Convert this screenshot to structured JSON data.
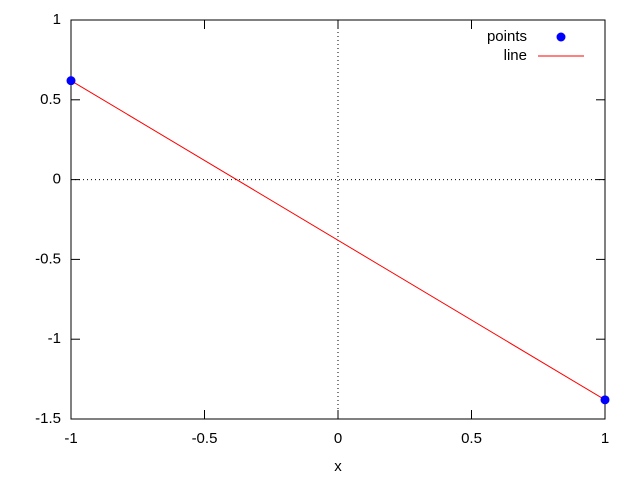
{
  "chart_data": {
    "type": "scatter",
    "xlabel": "x",
    "x": [
      -1,
      1
    ],
    "series": [
      {
        "name": "points",
        "color": "#0000ff",
        "style": "points",
        "values": [
          0.62,
          -1.38
        ]
      },
      {
        "name": "line",
        "color": "#ff0000",
        "style": "line",
        "values": [
          0.62,
          -1.38
        ]
      }
    ],
    "xlim": [
      -1,
      1
    ],
    "xticks": [
      -1,
      -0.5,
      0,
      0.5,
      1
    ],
    "ylim": [
      -1.5,
      1
    ],
    "yticks": [
      -1.5,
      -1,
      -0.5,
      0,
      0.5,
      1
    ],
    "zeroaxis": true,
    "legend": "top-right"
  }
}
